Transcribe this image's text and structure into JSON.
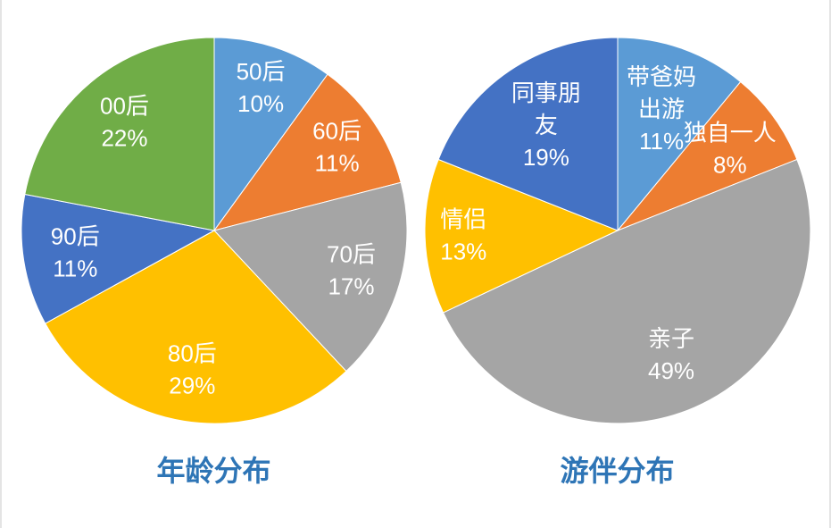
{
  "page": {
    "background": "#ffffff",
    "label_text_color": "#ffffff"
  },
  "chart_data": [
    {
      "type": "pie",
      "title": "年龄分布",
      "title_color": "#2e75b6",
      "start_angle": 0,
      "direction": "clockwise",
      "legend": "none",
      "label_color": "#ffffff",
      "slices": [
        {
          "label": "50后",
          "value": 10,
          "pct": "10%",
          "color": "#5B9BD5",
          "label_lines": [
            "50后",
            "10%"
          ],
          "label_r": 0.78
        },
        {
          "label": "60后",
          "value": 11,
          "pct": "11%",
          "color": "#ED7D31",
          "label_lines": [
            "60后",
            "11%"
          ],
          "label_r": 0.77
        },
        {
          "label": "70后",
          "value": 17,
          "pct": "17%",
          "color": "#A5A5A5",
          "label_lines": [
            "70后",
            "17%"
          ],
          "label_r": 0.74
        },
        {
          "label": "80后",
          "value": 29,
          "pct": "29%",
          "color": "#FFC000",
          "label_lines": [
            "80后",
            "29%"
          ],
          "label_r": 0.73
        },
        {
          "label": "90后",
          "value": 11,
          "pct": "11%",
          "color": "#4472C4",
          "label_lines": [
            "90后",
            "11%"
          ],
          "label_r": 0.73
        },
        {
          "label": "00后",
          "value": 22,
          "pct": "22%",
          "color": "#70AD47",
          "label_lines": [
            "00后",
            "22%"
          ],
          "label_r": 0.73
        }
      ]
    },
    {
      "type": "pie",
      "title": "游伴分布",
      "title_color": "#2e75b6",
      "start_angle": 0,
      "direction": "clockwise",
      "legend": "none",
      "label_color": "#ffffff",
      "slices": [
        {
          "label": "带爸妈出游",
          "value": 11,
          "pct": "11%",
          "color": "#5B9BD5",
          "label_lines": [
            "带爸妈",
            "出游",
            "11%"
          ],
          "label_r": 0.67
        },
        {
          "label": "独自一人",
          "value": 8,
          "pct": "8%",
          "color": "#ED7D31",
          "label_lines": [
            "独自一人",
            "8%"
          ],
          "label_r": 0.72
        },
        {
          "label": "亲子",
          "value": 49,
          "pct": "49%",
          "color": "#A5A5A5",
          "label_lines": [
            "亲子",
            "49%"
          ],
          "label_r": 0.7
        },
        {
          "label": "情侣",
          "value": 13,
          "pct": "13%",
          "color": "#FFC000",
          "label_lines": [
            "情侣",
            "13%"
          ],
          "label_r": 0.8
        },
        {
          "label": "同事朋友",
          "value": 19,
          "pct": "19%",
          "color": "#4472C4",
          "label_lines": [
            "同事朋",
            "友",
            "19%"
          ],
          "label_r": 0.66
        }
      ]
    }
  ]
}
